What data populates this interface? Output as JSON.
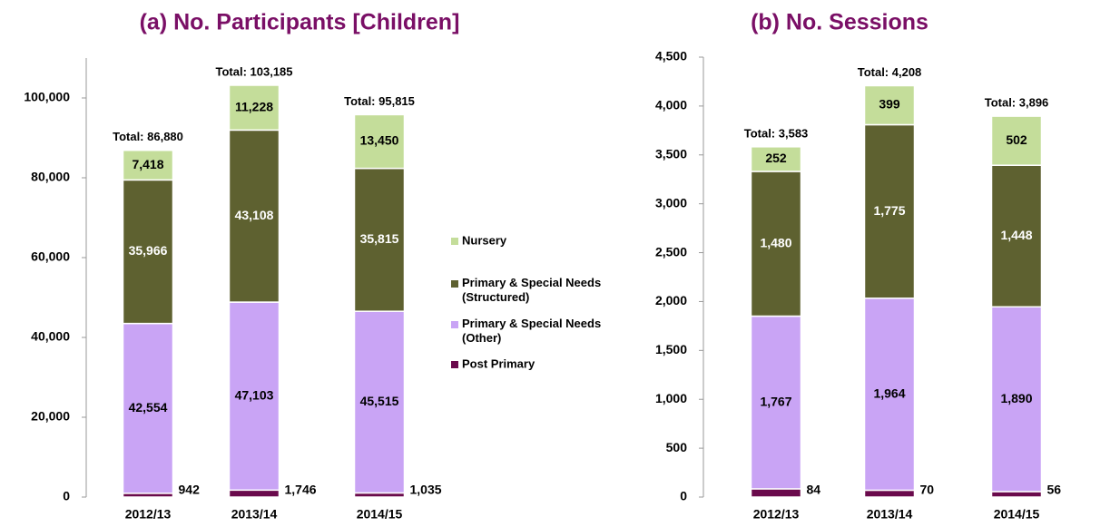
{
  "chart_data": [
    {
      "type": "stacked_bar",
      "title": "(a) No. Participants [Children]",
      "categories": [
        "2012/13",
        "2013/14",
        "2014/15"
      ],
      "series": [
        {
          "name": "Nursery",
          "color": "#c4dd9a",
          "values": [
            7418,
            11228,
            13450
          ],
          "value_labels": [
            "7,418",
            "11,228",
            "13,450"
          ]
        },
        {
          "name": "Primary & Special Needs (Structured)",
          "color": "#5e6130",
          "values": [
            35966,
            43108,
            35815
          ],
          "value_labels": [
            "35,966",
            "43,108",
            "35,815"
          ]
        },
        {
          "name": "Primary & Special Needs (Other)",
          "color": "#c9a4f5",
          "values": [
            42554,
            47103,
            45515
          ],
          "value_labels": [
            "42,554",
            "47,103",
            "45,515"
          ]
        },
        {
          "name": "Post Primary",
          "color": "#6a0a4c",
          "values": [
            942,
            1746,
            1035
          ],
          "value_labels": [
            "942",
            "1,746",
            "1,035"
          ]
        }
      ],
      "total_labels": [
        "Total: 86,880",
        "Total: 103,185",
        "Total: 95,815"
      ],
      "ylim": [
        0,
        110000
      ],
      "yticks": [
        0,
        {
          "value": 20000,
          "label": "20,000"
        },
        {
          "value": 40000,
          "label": "40,000"
        },
        {
          "value": 60000,
          "label": "60,000"
        },
        {
          "value": 80000,
          "label": "80,000"
        },
        {
          "value": 100000,
          "label": "100,000"
        }
      ]
    },
    {
      "type": "stacked_bar",
      "title": "(b) No. Sessions",
      "categories": [
        "2012/13",
        "2013/14",
        "2014/15"
      ],
      "series": [
        {
          "color": "#c4dd9a",
          "values": [
            252,
            399,
            502
          ],
          "value_labels": [
            "252",
            "399",
            "502"
          ]
        },
        {
          "color": "#5e6130",
          "values": [
            1480,
            1775,
            1448
          ],
          "value_labels": [
            "1,480",
            "1,775",
            "1,448"
          ]
        },
        {
          "color": "#c9a4f5",
          "values": [
            1767,
            1964,
            1890
          ],
          "value_labels": [
            "1,767",
            "1,964",
            "1,890"
          ]
        },
        {
          "color": "#6a0a4c",
          "values": [
            84,
            70,
            56
          ],
          "value_labels": [
            "84",
            "70",
            "56"
          ]
        }
      ],
      "total_labels": [
        "Total: 3,583",
        "Total: 4,208",
        "Total: 3,896"
      ],
      "ylim": [
        0,
        4500
      ],
      "yticks": [
        0,
        500,
        {
          "value": 1000,
          "label": "1,000"
        },
        {
          "value": 1500,
          "label": "1,500"
        },
        {
          "value": 2000,
          "label": "2,000"
        },
        {
          "value": 2500,
          "label": "2,500"
        },
        {
          "value": 3000,
          "label": "3,000"
        },
        {
          "value": 3500,
          "label": "3,500"
        },
        {
          "value": 4000,
          "label": "4,000"
        },
        {
          "value": 4500,
          "label": "4,500"
        }
      ]
    }
  ]
}
